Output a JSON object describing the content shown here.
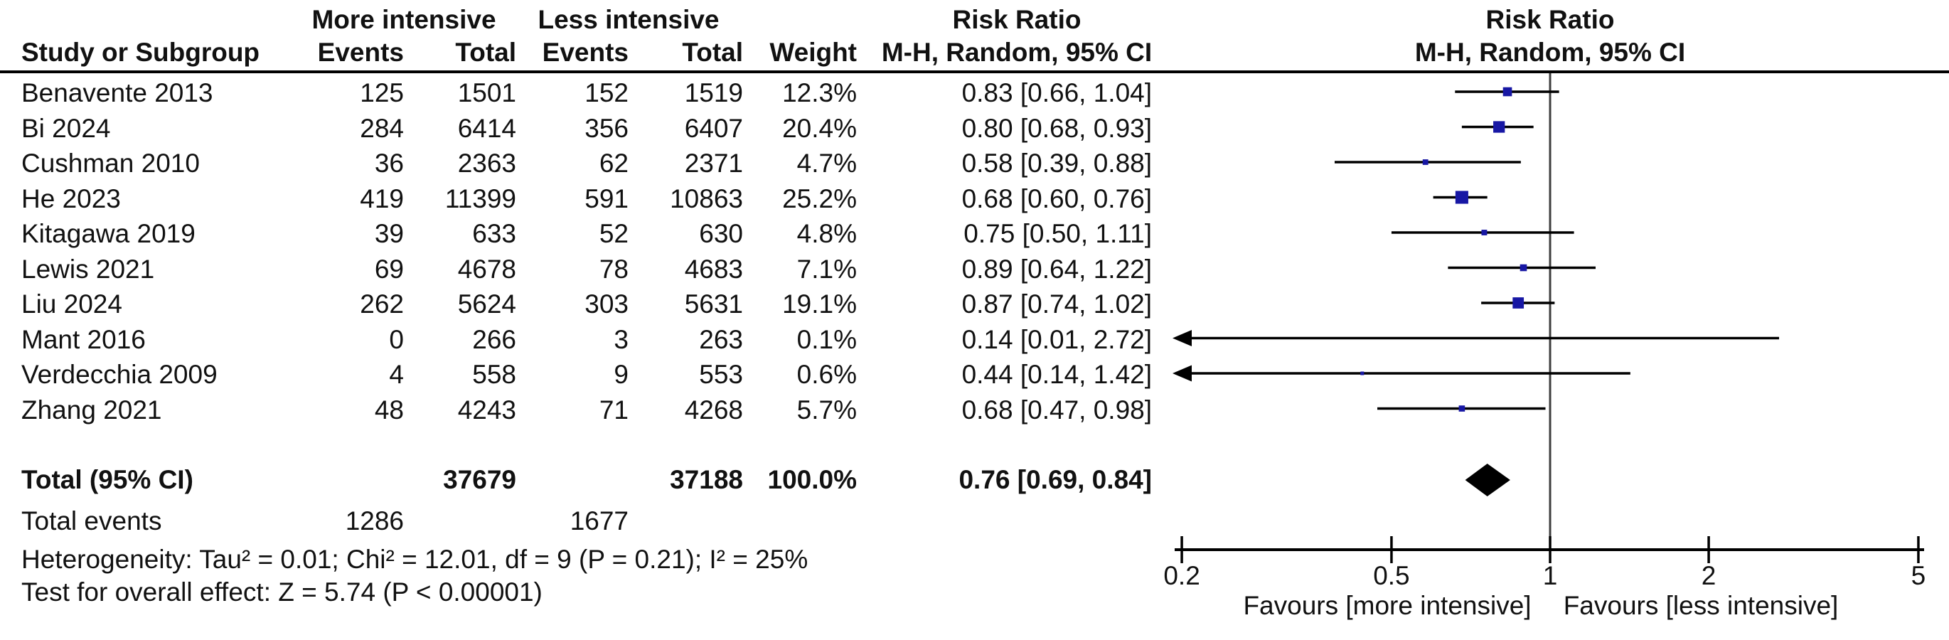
{
  "header": {
    "group1": "More intensive",
    "group2": "Less intensive",
    "study_col": "Study or Subgroup",
    "events_col": "Events",
    "total_col": "Total",
    "weight_col": "Weight",
    "risk_ratio": "Risk Ratio",
    "method": "M-H, Random, 95% CI"
  },
  "totals": {
    "label": "Total (95% CI)",
    "total1": "37679",
    "total2": "37188",
    "weight": "100.0%",
    "rr_text": "0.76 [0.69, 0.84]",
    "events_label": "Total events",
    "events1": "1286",
    "events2": "1677"
  },
  "footer": {
    "heterogeneity": "Heterogeneity: Tau² = 0.01; Chi² = 12.01, df = 9 (P = 0.21); I² = 25%",
    "overall": "Test for overall effect: Z = 5.74 (P < 0.00001)"
  },
  "colors": {
    "marker": "#1717A4",
    "diamond": "#000000",
    "ci_line": "#000000",
    "unity_line": "#3F3F3F",
    "axis": "#000000",
    "text": "#111111"
  },
  "chart_data": {
    "type": "forest",
    "x_scale": "log",
    "x_range": [
      0.2,
      5
    ],
    "x_ticks": [
      0.2,
      0.5,
      1,
      2,
      5
    ],
    "xlabel_left": "Favours [more intensive]",
    "xlabel_right": "Favours [less intensive]",
    "effect_measure": "Risk Ratio, M-H, Random, 95% CI",
    "studies": [
      {
        "study": "Benavente 2013",
        "events1": "125",
        "total1": "1501",
        "events2": "152",
        "total2": "1519",
        "weight": "12.3%",
        "rr_text": "0.83 [0.66, 1.04]",
        "rr": 0.83,
        "lo": 0.66,
        "hi": 1.04,
        "weight_pct": 12.3
      },
      {
        "study": "Bi 2024",
        "events1": "284",
        "total1": "6414",
        "events2": "356",
        "total2": "6407",
        "weight": "20.4%",
        "rr_text": "0.80 [0.68, 0.93]",
        "rr": 0.8,
        "lo": 0.68,
        "hi": 0.93,
        "weight_pct": 20.4
      },
      {
        "study": "Cushman 2010",
        "events1": "36",
        "total1": "2363",
        "events2": "62",
        "total2": "2371",
        "weight": "4.7%",
        "rr_text": "0.58 [0.39, 0.88]",
        "rr": 0.58,
        "lo": 0.39,
        "hi": 0.88,
        "weight_pct": 4.7
      },
      {
        "study": "He 2023",
        "events1": "419",
        "total1": "11399",
        "events2": "591",
        "total2": "10863",
        "weight": "25.2%",
        "rr_text": "0.68 [0.60, 0.76]",
        "rr": 0.68,
        "lo": 0.6,
        "hi": 0.76,
        "weight_pct": 25.2
      },
      {
        "study": "Kitagawa 2019",
        "events1": "39",
        "total1": "633",
        "events2": "52",
        "total2": "630",
        "weight": "4.8%",
        "rr_text": "0.75 [0.50, 1.11]",
        "rr": 0.75,
        "lo": 0.5,
        "hi": 1.11,
        "weight_pct": 4.8
      },
      {
        "study": "Lewis 2021",
        "events1": "69",
        "total1": "4678",
        "events2": "78",
        "total2": "4683",
        "weight": "7.1%",
        "rr_text": "0.89 [0.64, 1.22]",
        "rr": 0.89,
        "lo": 0.64,
        "hi": 1.22,
        "weight_pct": 7.1
      },
      {
        "study": "Liu 2024",
        "events1": "262",
        "total1": "5624",
        "events2": "303",
        "total2": "5631",
        "weight": "19.1%",
        "rr_text": "0.87 [0.74, 1.02]",
        "rr": 0.87,
        "lo": 0.74,
        "hi": 1.02,
        "weight_pct": 19.1
      },
      {
        "study": "Mant 2016",
        "events1": "0",
        "total1": "266",
        "events2": "3",
        "total2": "263",
        "weight": "0.1%",
        "rr_text": "0.14 [0.01, 2.72]",
        "rr": 0.14,
        "lo": 0.01,
        "hi": 2.72,
        "weight_pct": 0.1
      },
      {
        "study": "Verdecchia 2009",
        "events1": "4",
        "total1": "558",
        "events2": "9",
        "total2": "553",
        "weight": "0.6%",
        "rr_text": "0.44 [0.14, 1.42]",
        "rr": 0.44,
        "lo": 0.14,
        "hi": 1.42,
        "weight_pct": 0.6
      },
      {
        "study": "Zhang 2021",
        "events1": "48",
        "total1": "4243",
        "events2": "71",
        "total2": "4268",
        "weight": "5.7%",
        "rr_text": "0.68 [0.47, 0.98]",
        "rr": 0.68,
        "lo": 0.47,
        "hi": 0.98,
        "weight_pct": 5.7
      }
    ],
    "total": {
      "rr": 0.76,
      "lo": 0.69,
      "hi": 0.84,
      "rr_text": "0.76 [0.69, 0.84]"
    }
  }
}
